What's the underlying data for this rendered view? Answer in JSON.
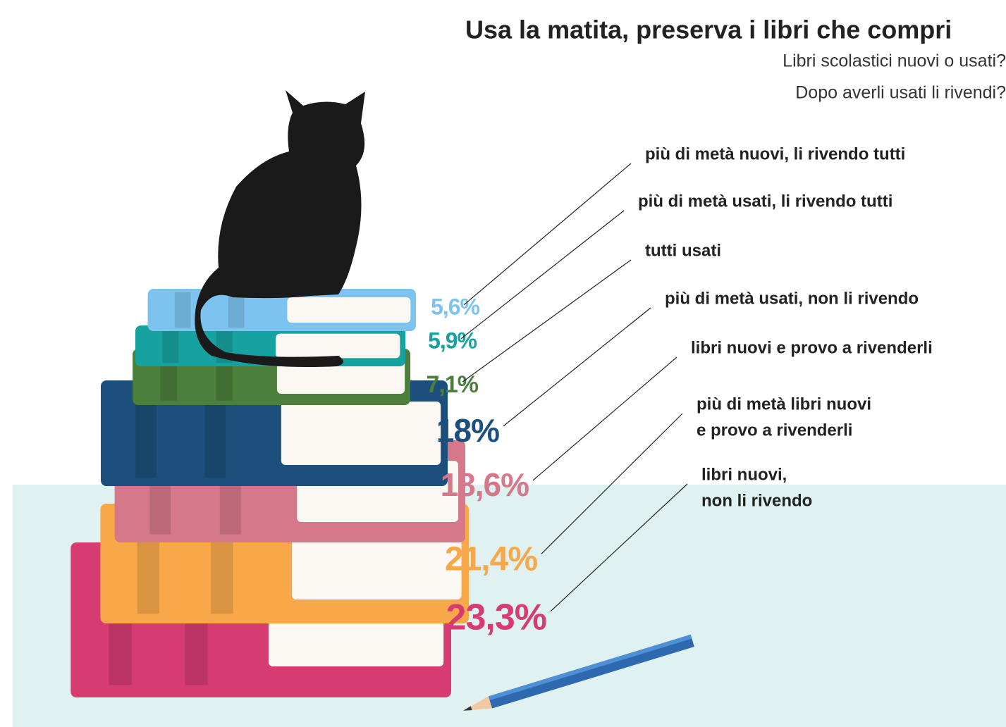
{
  "chart_data": {
    "type": "book-stack",
    "title": "Usa la matita, preserva i libri che compri",
    "subtitle": [
      "Libri scolastici nuovi o usati?",
      "Dopo averli usati li rivendi?"
    ],
    "categories": [
      [
        "più di metà nuovi, li rivendo tutti"
      ],
      [
        "più di metà usati, li rivendo tutti"
      ],
      [
        "tutti usati"
      ],
      [
        "più di metà usati, non li rivendo"
      ],
      [
        "libri nuovi e provo a rivenderli"
      ],
      [
        "più di metà libri nuovi",
        "e provo a rivenderli"
      ],
      [
        "libri nuovi,",
        "non li rivendo"
      ]
    ],
    "values": [
      5.6,
      5.9,
      7.1,
      18,
      18.6,
      21.4,
      23.3
    ],
    "value_labels": [
      "5,6%",
      "5,9%",
      "7,1%",
      "18%",
      "18,6%",
      "21,4%",
      "23,3%"
    ],
    "colors": [
      "#7cc3ef",
      "#16a29f",
      "#4b7f3b",
      "#1c4f7c",
      "#d5788a",
      "#f9a849",
      "#d63c72"
    ]
  }
}
